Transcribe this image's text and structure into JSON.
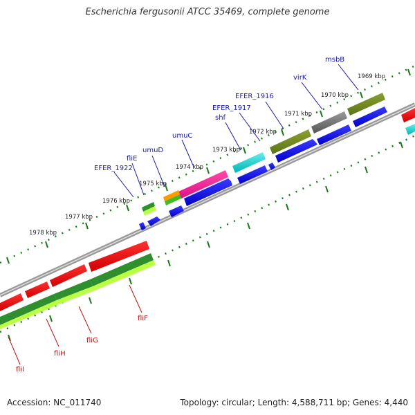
{
  "title": "Escherichia fergusonii ATCC 35469, complete genome",
  "footer": {
    "accession": "Accession: NC_011740",
    "summary": "Topology: circular; Length: 4,588,711 bp; Genes: 4,440"
  },
  "colors": {
    "forward_cds": "#0000ff",
    "reverse_cds": "#ff0000",
    "backbone": "#888888",
    "tick": "#1a7a1a",
    "label_blue": "#1a1aaa",
    "label_red": "#bb1111"
  },
  "ticks": [
    "1969 kbp",
    "1970 kbp",
    "1971 kbp",
    "1972 kbp",
    "1973 kbp",
    "1974 kbp",
    "1975 kbp",
    "1976 kbp",
    "1977 kbp",
    "1978 kbp"
  ],
  "gene_labels_top": [
    "msbB",
    "virK",
    "EFER_1916",
    "EFER_1917",
    "shf",
    "umuC",
    "umuD",
    "fliE",
    "EFER_1922"
  ],
  "gene_labels_bottom": [
    "fliF",
    "fliG",
    "fliH",
    "fliI"
  ]
}
